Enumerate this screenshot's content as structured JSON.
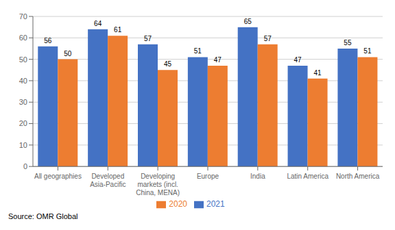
{
  "chart_data": {
    "type": "bar",
    "categories": [
      "All geographies",
      "Developed\nAsia-Pacific",
      "Developing\nmarkets (incl.\nChina, MENA)",
      "Europe",
      "India",
      "Latin America",
      "North America"
    ],
    "series": [
      {
        "name": "2021",
        "color": "#4472C4",
        "values": [
          56,
          64,
          57,
          51,
          65,
          47,
          55
        ]
      },
      {
        "name": "2020",
        "color": "#ED7D31",
        "values": [
          50,
          61,
          45,
          47,
          57,
          41,
          51
        ]
      }
    ],
    "ylim": [
      0,
      70
    ],
    "yticks": [
      0,
      10,
      20,
      30,
      40,
      50,
      60,
      70
    ],
    "grid": true,
    "legend": "bottom",
    "data_labels": true,
    "annotations": [
      "Source: OMR Global"
    ]
  }
}
